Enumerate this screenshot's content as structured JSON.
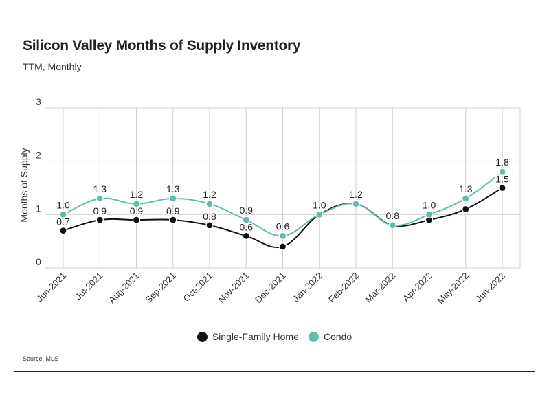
{
  "header": {
    "title": "Silicon Valley Months of Supply Inventory",
    "subtitle": "TTM, Monthly"
  },
  "footer": {
    "source": "Source:  MLS"
  },
  "colors": {
    "sfh": "#111111",
    "condo": "#5bbfae",
    "grid": "#cfcfcf",
    "text": "#333333"
  },
  "chart_data": {
    "type": "line",
    "title": "Silicon Valley Months of Supply Inventory",
    "subtitle": "TTM, Monthly",
    "xlabel": "",
    "ylabel": "Months of Supply",
    "ylim": [
      0,
      3
    ],
    "yticks": [
      0,
      1,
      2,
      3
    ],
    "grid": true,
    "legend_position": "bottom-center",
    "categories": [
      "Jun-2021",
      "Jul-2021",
      "Aug-2021",
      "Sep-2021",
      "Oct-2021",
      "Nov-2021",
      "Dec-2021",
      "Jan-2022",
      "Feb-2022",
      "Mar-2022",
      "Apr-2022",
      "May-2022",
      "Jun-2022"
    ],
    "series": [
      {
        "name": "Single-Family Home",
        "color": "#111111",
        "values": [
          0.7,
          0.9,
          0.9,
          0.9,
          0.8,
          0.6,
          0.4,
          1.0,
          1.2,
          0.8,
          0.9,
          1.1,
          1.5
        ],
        "labels": [
          "0.7",
          "0.9",
          "0.9",
          "0.9",
          "0.8",
          "0.6",
          "",
          "",
          "",
          "",
          "",
          "",
          "1.5"
        ]
      },
      {
        "name": "Condo",
        "color": "#5bbfae",
        "values": [
          1.0,
          1.3,
          1.2,
          1.3,
          1.2,
          0.9,
          0.6,
          1.0,
          1.2,
          0.8,
          1.0,
          1.3,
          1.8
        ],
        "labels": [
          "1.0",
          "1.3",
          "1.2",
          "1.3",
          "1.2",
          "0.9",
          "0.6",
          "1.0",
          "1.2",
          "0.8",
          "1.0",
          "1.3",
          "1.8"
        ]
      }
    ]
  }
}
